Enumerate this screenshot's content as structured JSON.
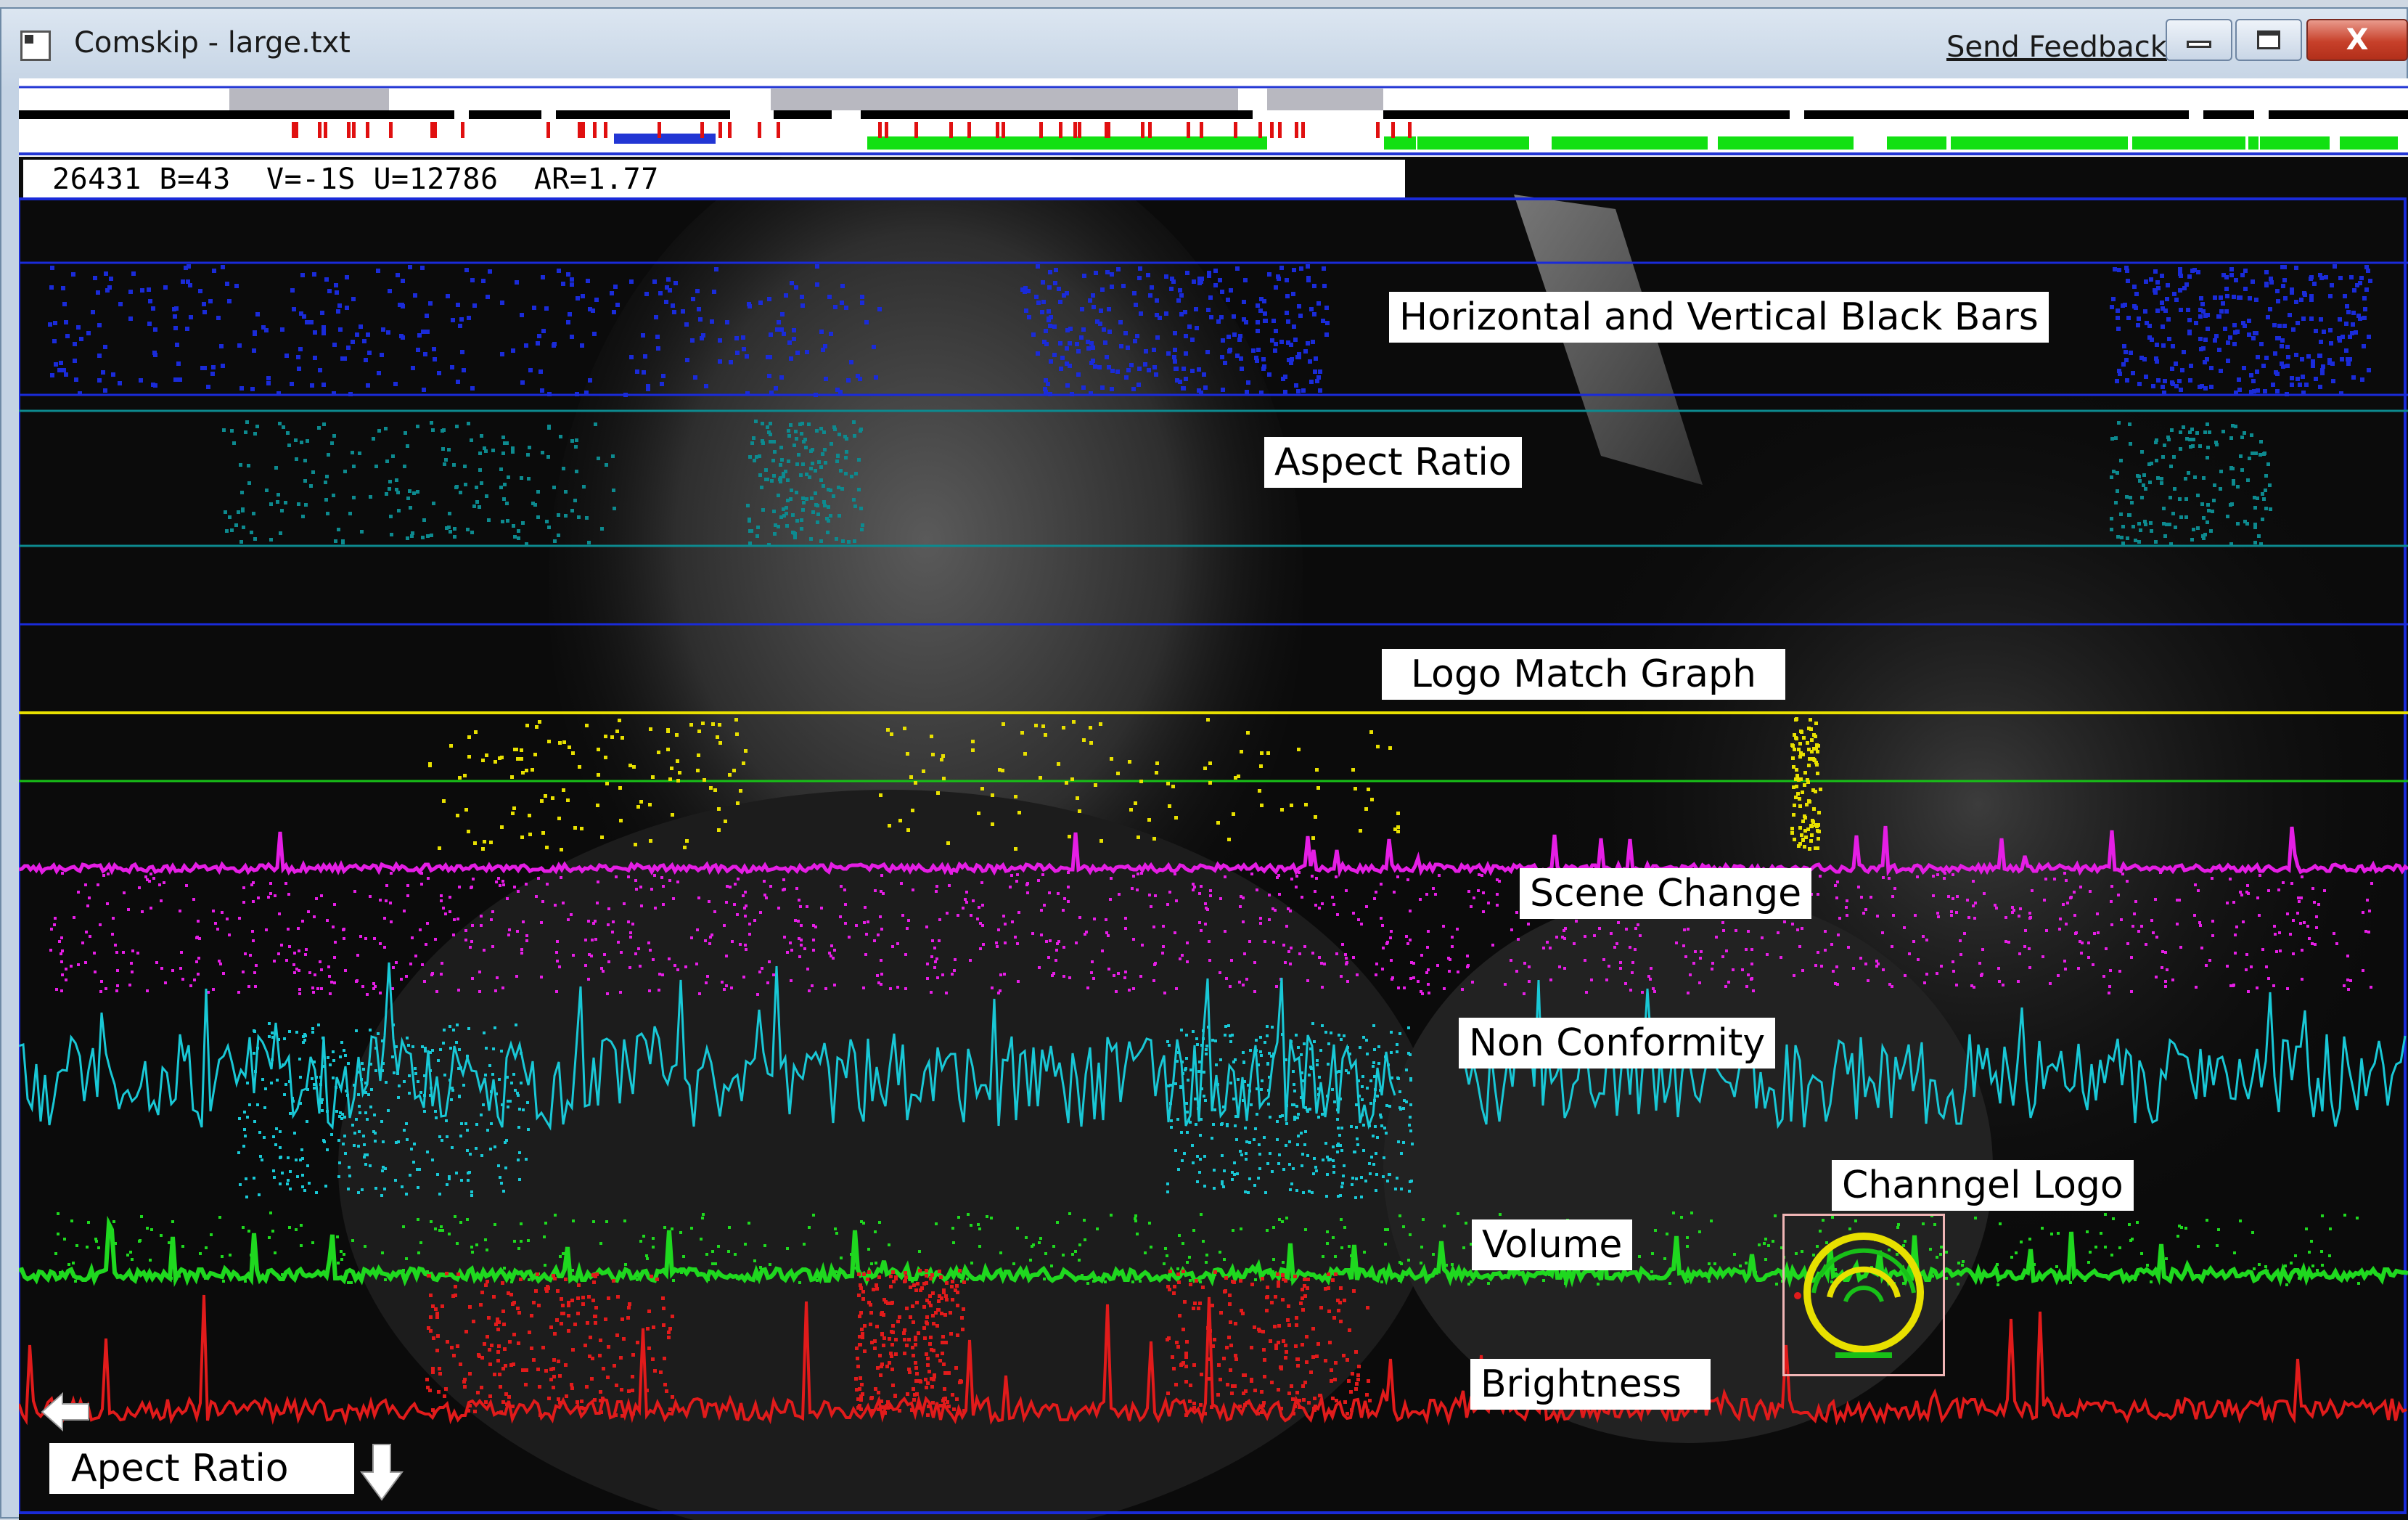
{
  "window": {
    "title": "Comskip - large.txt",
    "send_feedback": "Send Feedback",
    "close_glyph": "X"
  },
  "status": {
    "text": "26431 B=43  V=-1S U=12786  AR=1.77"
  },
  "labels": {
    "black_bars": "Horizontal and Vertical Black Bars",
    "aspect_ratio": "Aspect Ratio",
    "logo_match": "Logo Match Graph",
    "scene_change": "Scene Change",
    "non_conformity": "Non Conformity",
    "channel_logo": "Channgel Logo",
    "volume": "Volume",
    "brightness": "Brightness",
    "apect_ratio_bottom": "Apect Ratio"
  },
  "icons": {
    "app": "app-window-icon",
    "left_arrow": "arrow-left-icon",
    "down_arrow": "arrow-down-icon",
    "channel_logo": "channel-logo-icon"
  },
  "colors": {
    "black_bars": "#1a2bd9",
    "aspect_ratio": "#0d8a8f",
    "logo_match": "#e8e000",
    "logo_ref": "#18c018",
    "scene_change": "#e51ee5",
    "non_conformity": "#19c8d6",
    "volume": "#1fd81f",
    "brightness": "#e11b1b",
    "timeline_green": "#12e012",
    "timeline_red": "#e01010",
    "timeline_blue": "#2236d4",
    "blue_frame": "#1a2bd9"
  }
}
